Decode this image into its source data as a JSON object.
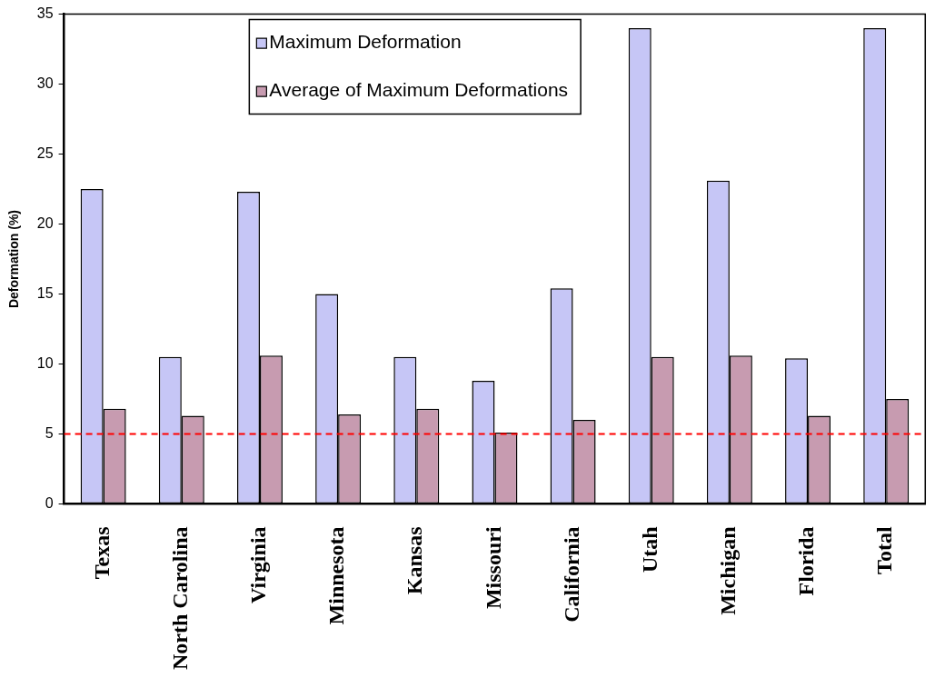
{
  "chart_data": {
    "type": "bar",
    "ylabel": "Deformation (%)",
    "categories": [
      "Texas",
      "North Carolina",
      "Virginia",
      "Minnesota",
      "Kansas",
      "Missouri",
      "California",
      "Utah",
      "Michigan",
      "Florida",
      "Total"
    ],
    "series": [
      {
        "name": "Maximum Deformation",
        "color": "#c6c6f6",
        "values": [
          22.5,
          10.5,
          22.3,
          15.0,
          10.5,
          8.8,
          15.4,
          34.0,
          23.1,
          10.4,
          34.0
        ]
      },
      {
        "name": "Average of Maximum Deformations",
        "color": "#c79bb0",
        "values": [
          6.8,
          6.3,
          10.6,
          6.4,
          6.8,
          5.1,
          6.0,
          10.5,
          10.6,
          6.3,
          7.5
        ]
      }
    ],
    "ylim": [
      0,
      35
    ],
    "yticks": [
      0,
      5,
      10,
      15,
      20,
      25,
      30,
      35
    ],
    "ref_lines": [
      {
        "axis": "y",
        "value": 5,
        "color": "#ff0000",
        "line_style": "dashed"
      }
    ],
    "legend": "top"
  }
}
